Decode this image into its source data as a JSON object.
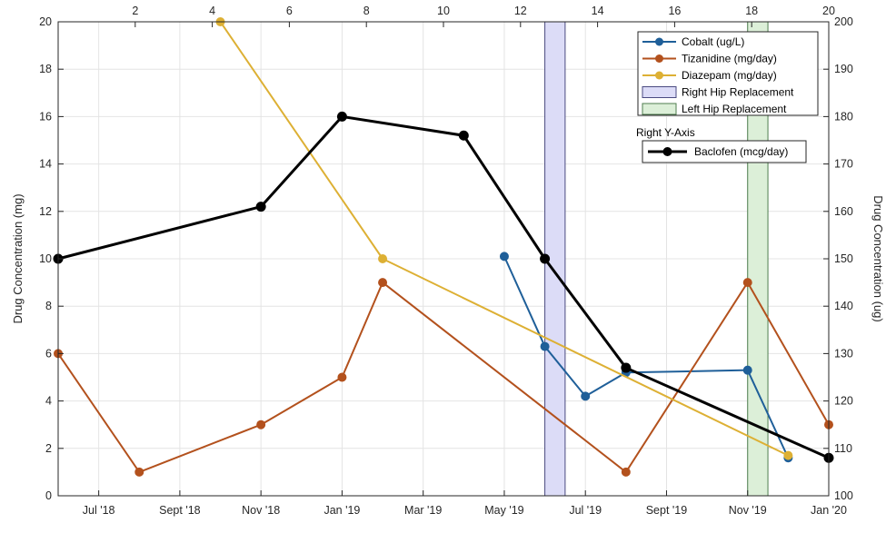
{
  "chart_data": {
    "type": "line",
    "ylabel": "Drug Concentration (mg)",
    "y2label": "Drug Concentration (ug)",
    "ylim": [
      0,
      20
    ],
    "y2lim": [
      100,
      200
    ],
    "xlim": [
      0,
      19
    ],
    "top_xlim": [
      0,
      20
    ],
    "bottom_ticks": [
      {
        "x": 1,
        "label": "Jul '18"
      },
      {
        "x": 3,
        "label": "Sept '18"
      },
      {
        "x": 5,
        "label": "Nov '18"
      },
      {
        "x": 7,
        "label": "Jan '19"
      },
      {
        "x": 9,
        "label": "Mar '19"
      },
      {
        "x": 11,
        "label": "May '19"
      },
      {
        "x": 13,
        "label": "Jul '19"
      },
      {
        "x": 15,
        "label": "Sept '19"
      },
      {
        "x": 17,
        "label": "Nov '19"
      },
      {
        "x": 19,
        "label": "Jan '20"
      }
    ],
    "top_ticks": [
      2,
      4,
      6,
      8,
      10,
      12,
      14,
      16,
      18,
      20
    ],
    "left_ticks": [
      0,
      2,
      4,
      6,
      8,
      10,
      12,
      14,
      16,
      18,
      20
    ],
    "right_ticks": [
      100,
      110,
      120,
      130,
      140,
      150,
      160,
      170,
      180,
      190,
      200
    ],
    "grid": true,
    "legend_position": "top-right",
    "series": [
      {
        "name": "Cobalt (ug/L)",
        "axis": "left",
        "color": "#1f5f99",
        "points": [
          [
            11,
            10.1
          ],
          [
            12,
            6.3
          ],
          [
            13,
            4.2
          ],
          [
            14,
            5.2
          ],
          [
            17,
            5.3
          ],
          [
            18,
            1.6
          ]
        ]
      },
      {
        "name": "Tizanidine (mg/day)",
        "axis": "left",
        "color": "#b3511d",
        "points": [
          [
            0,
            6
          ],
          [
            2,
            1
          ],
          [
            5,
            3
          ],
          [
            7,
            5
          ],
          [
            8,
            9
          ],
          [
            14,
            1
          ],
          [
            17,
            9
          ],
          [
            19,
            3
          ]
        ]
      },
      {
        "name": "Diazepam (mg/day)",
        "axis": "left",
        "color": "#ddb034",
        "points": [
          [
            4,
            20
          ],
          [
            8,
            10
          ],
          [
            18,
            1.7
          ]
        ]
      },
      {
        "name": "Baclofen (mcg/day)",
        "axis": "right",
        "color": "#000000",
        "points": [
          [
            0,
            150
          ],
          [
            5,
            161
          ],
          [
            7,
            180
          ],
          [
            10,
            176
          ],
          [
            12,
            150
          ],
          [
            14,
            127
          ],
          [
            19,
            108
          ]
        ]
      }
    ],
    "shaded_regions": [
      {
        "name": "Right Hip Replacement",
        "x": [
          12,
          12.5
        ],
        "fill": "#dcdcf7",
        "stroke": "#4a4a80"
      },
      {
        "name": "Left Hip Replacement",
        "x": [
          17,
          17.5
        ],
        "fill": "#dcefd8",
        "stroke": "#4f7d4f"
      }
    ],
    "legend_group_title": "Right Y-Axis"
  }
}
